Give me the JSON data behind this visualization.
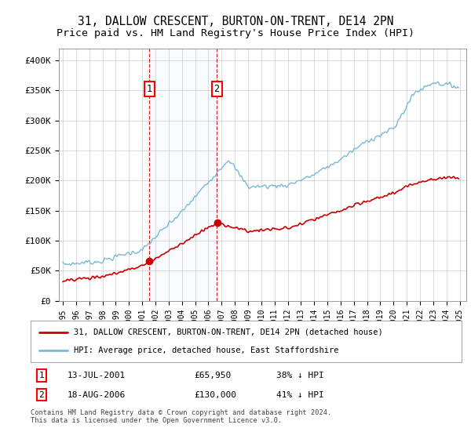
{
  "title": "31, DALLOW CRESCENT, BURTON-ON-TRENT, DE14 2PN",
  "subtitle": "Price paid vs. HM Land Registry's House Price Index (HPI)",
  "ylim": [
    0,
    420000
  ],
  "yticks": [
    0,
    50000,
    100000,
    150000,
    200000,
    250000,
    300000,
    350000,
    400000
  ],
  "ytick_labels": [
    "£0",
    "£50K",
    "£100K",
    "£150K",
    "£200K",
    "£250K",
    "£300K",
    "£350K",
    "£400K"
  ],
  "hpi_color": "#7ab8d9",
  "price_color": "#cc0000",
  "shade_color": "#ddeeff",
  "vline_color": "#cc0000",
  "transaction1_year": 2001.53,
  "transaction1_price": 65950,
  "transaction2_year": 2006.63,
  "transaction2_price": 130000,
  "legend_label1": "31, DALLOW CRESCENT, BURTON-ON-TRENT, DE14 2PN (detached house)",
  "legend_label2": "HPI: Average price, detached house, East Staffordshire",
  "footnote": "Contains HM Land Registry data © Crown copyright and database right 2024.\nThis data is licensed under the Open Government Licence v3.0.",
  "title_fontsize": 10.5,
  "subtitle_fontsize": 9.5,
  "tick_fontsize": 8,
  "background_color": "#ffffff",
  "grid_color": "#cccccc"
}
